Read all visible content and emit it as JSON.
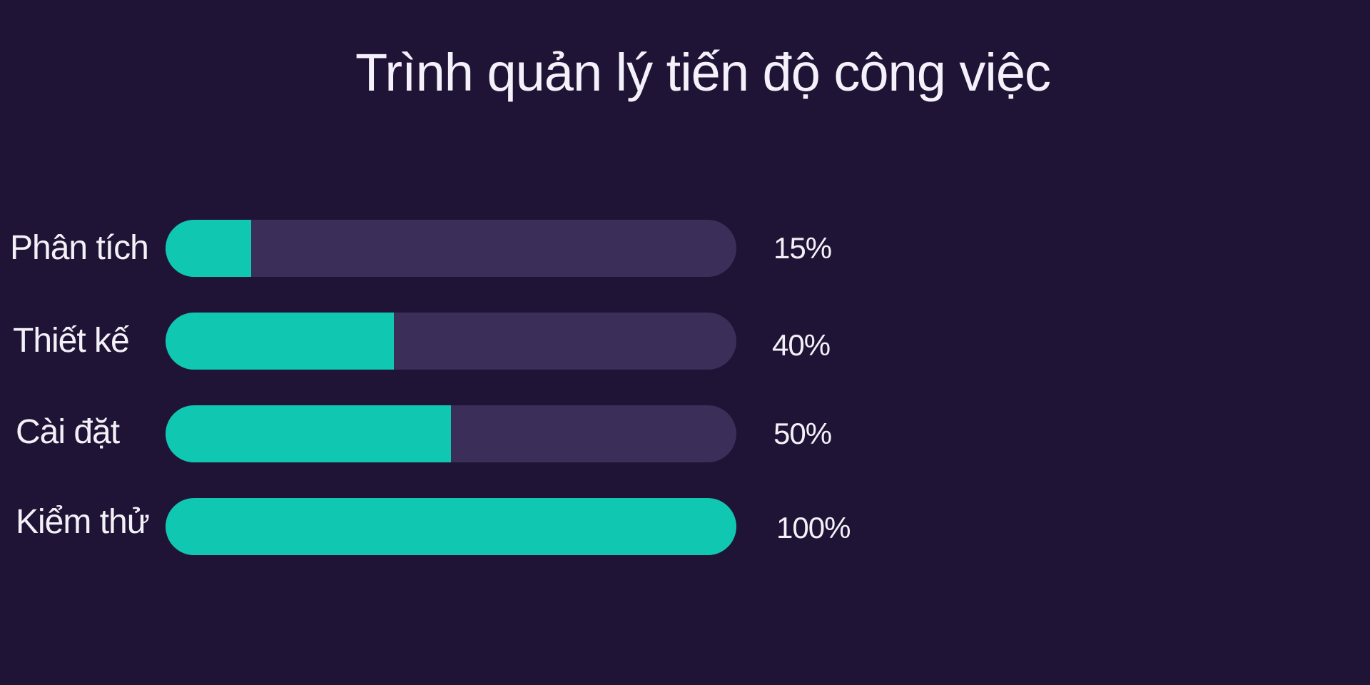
{
  "chart_data": {
    "type": "bar",
    "orientation": "horizontal",
    "title": "Trình quản lý tiến độ công việc",
    "categories": [
      "Phân tích",
      "Thiết kế",
      "Cài đặt",
      "Kiểm thử"
    ],
    "values": [
      15,
      40,
      50,
      100
    ],
    "value_labels": [
      "15%",
      "40%",
      "50%",
      "100%"
    ],
    "xlim": [
      0,
      100
    ],
    "grid": false,
    "colors": {
      "background": "#201436",
      "track": "#3b2e59",
      "fill": "#10c8b1",
      "text": "#f3f1f7"
    }
  }
}
